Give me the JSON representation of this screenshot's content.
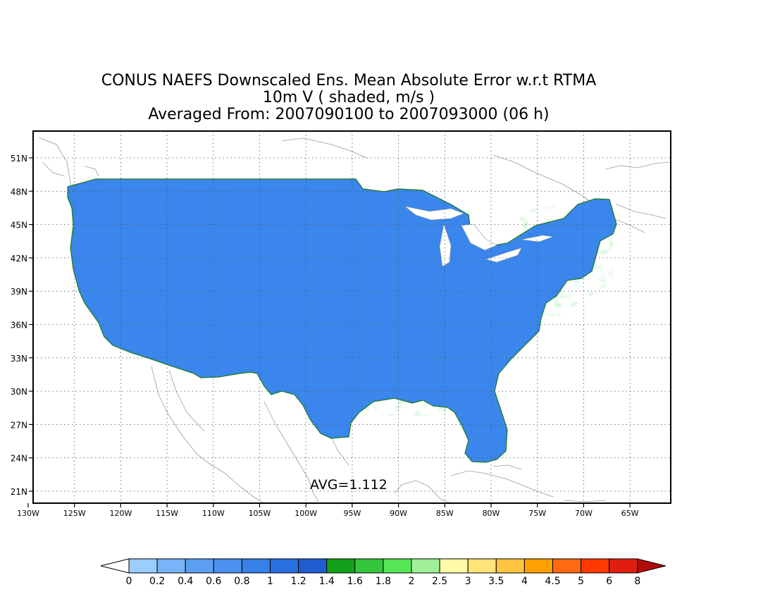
{
  "titles": {
    "line1": "CONUS NAEFS Downscaled Ens. Mean Absolute Error w.r.t RTMA",
    "line2": "10m V ( shaded, m/s )",
    "line3": "Averaged From: 2007090100 to 2007093000 (06 h)"
  },
  "map": {
    "avg_label": "AVG=1.112",
    "lat_labels": [
      "51N",
      "48N",
      "45N",
      "42N",
      "39N",
      "36N",
      "33N",
      "30N",
      "27N",
      "24N",
      "21N"
    ],
    "lon_labels": [
      "130W",
      "125W",
      "120W",
      "115W",
      "110W",
      "105W",
      "100W",
      "95W",
      "90W",
      "85W",
      "80W",
      "75W",
      "70W",
      "65W"
    ],
    "grid": "dotted",
    "projection": "lat-lon"
  },
  "colorbar": {
    "labels": [
      "0",
      "0.2",
      "0.4",
      "0.6",
      "0.8",
      "1",
      "1.2",
      "1.4",
      "1.6",
      "1.8",
      "2",
      "2.5",
      "3",
      "3.5",
      "4",
      "4.5",
      "5",
      "6",
      "8"
    ],
    "colors": [
      "#9ccdff",
      "#77b3f7",
      "#5ba0f0",
      "#4a90ee",
      "#3680e8",
      "#2a6fe0",
      "#1f5ed0",
      "#11a01a",
      "#35c53d",
      "#55e655",
      "#a0f09a",
      "#fffaa6",
      "#ffe47a",
      "#ffc440",
      "#ffa000",
      "#ff6a12",
      "#ff3a00",
      "#e01e10",
      "#b30a0a"
    ],
    "under_color": "#ffffff",
    "over_color": "#b30a0a"
  }
}
